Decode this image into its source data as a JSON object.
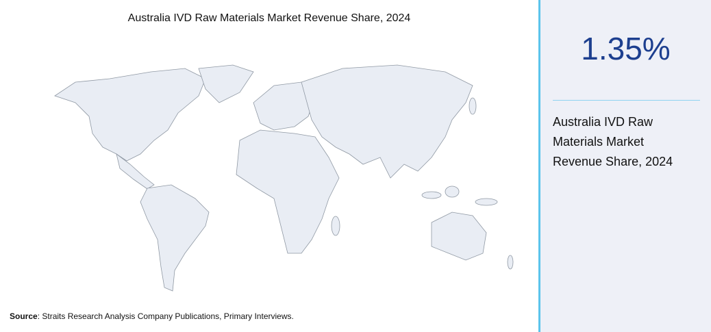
{
  "title": "Australia IVD Raw Materials Market Revenue Share, 2024",
  "stat": {
    "value": "1.35%",
    "label": "Australia IVD Raw Materials Market Revenue Share, 2024"
  },
  "source": {
    "label": "Source",
    "text": ": Straits Research Analysis Company Publications, Primary Interviews."
  }
}
